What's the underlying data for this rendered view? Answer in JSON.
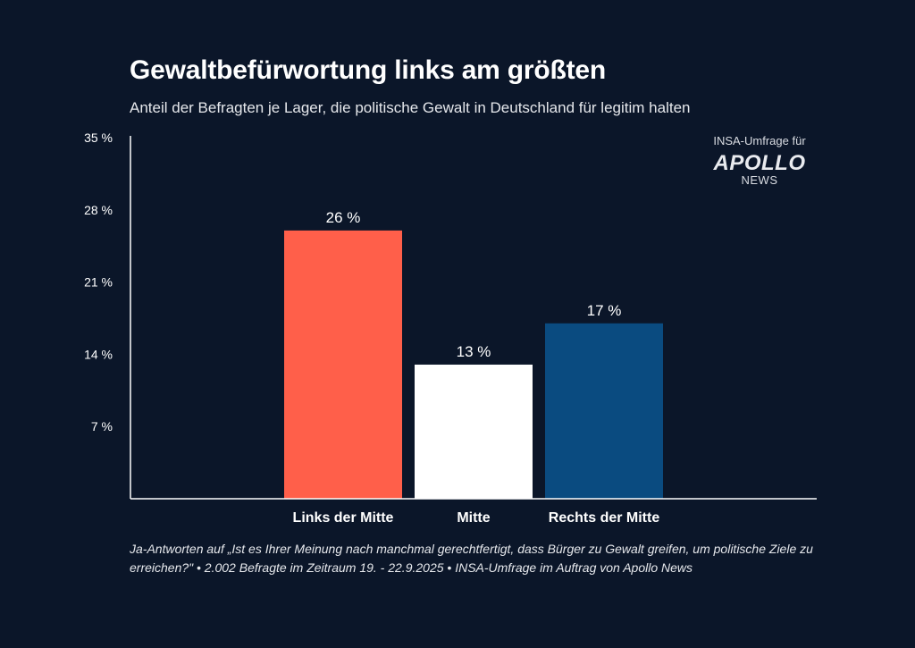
{
  "chart_data": {
    "type": "bar",
    "title": "Gewaltbefürwortung links am größten",
    "subtitle": "Anteil der Befragten je Lager, die politische Gewalt in Deutschland für legitim halten",
    "categories": [
      "Links der Mitte",
      "Mitte",
      "Rechts der Mitte"
    ],
    "values": [
      26,
      13,
      17
    ],
    "value_labels": [
      "26 %",
      "13 %",
      "17 %"
    ],
    "bar_colors": [
      "#ff5f4a",
      "#ffffff",
      "#0a4b80"
    ],
    "yticks": [
      7,
      14,
      21,
      28,
      35
    ],
    "ytick_labels": [
      "7 %",
      "14 %",
      "21 %",
      "28 %",
      "35 %"
    ],
    "ylim": [
      0,
      35
    ],
    "grid": false
  },
  "branding": {
    "prefix": "INSA-Umfrage für",
    "name": "APOLLO",
    "sub": "NEWS"
  },
  "footnote": "Ja-Antworten auf „Ist es Ihrer Meinung nach manchmal gerechtfertigt, dass Bürger zu Gewalt greifen, um politische Ziele zu erreichen?\" • 2.002 Befragte im Zeitraum 19. - 22.9.2025 • INSA-Umfrage im Auftrag von Apollo News"
}
